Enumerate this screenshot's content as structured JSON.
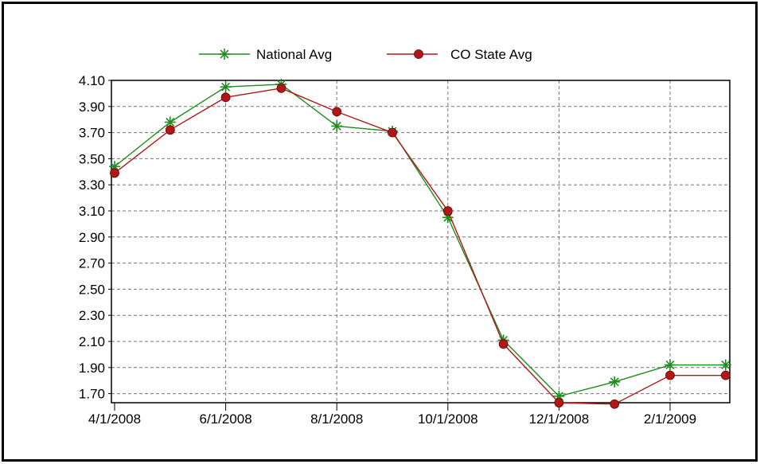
{
  "chart_data": {
    "type": "line",
    "title": "",
    "xlabel": "",
    "ylabel": "",
    "x": [
      "4/1/2008",
      "5/1/2008",
      "6/1/2008",
      "7/1/2008",
      "8/1/2008",
      "9/1/2008",
      "10/1/2008",
      "11/1/2008",
      "12/1/2008",
      "1/1/2009",
      "2/1/2009",
      "3/1/2009"
    ],
    "x_tick_labels": [
      "4/1/2008",
      "6/1/2008",
      "8/1/2008",
      "10/1/2008",
      "12/1/2008",
      "2/1/2009"
    ],
    "y_tick_labels": [
      "4.10",
      "3.90",
      "3.70",
      "3.50",
      "3.30",
      "3.10",
      "2.90",
      "2.70",
      "2.50",
      "2.30",
      "2.10",
      "1.90",
      "1.70"
    ],
    "ylim": [
      1.6,
      4.1
    ],
    "grid": true,
    "legend_position": "top-center",
    "series": [
      {
        "name": "National Avg",
        "color": "#1e8c1e",
        "marker": "asterisk",
        "values": [
          3.44,
          3.78,
          4.05,
          4.07,
          3.75,
          3.71,
          3.05,
          2.11,
          1.68,
          1.79,
          1.92,
          1.92
        ]
      },
      {
        "name": "CO State Avg",
        "color": "#b01818",
        "marker": "diamond",
        "values": [
          3.39,
          3.72,
          3.97,
          4.04,
          3.86,
          3.7,
          3.1,
          2.08,
          1.63,
          1.62,
          1.84,
          1.84
        ]
      }
    ]
  }
}
